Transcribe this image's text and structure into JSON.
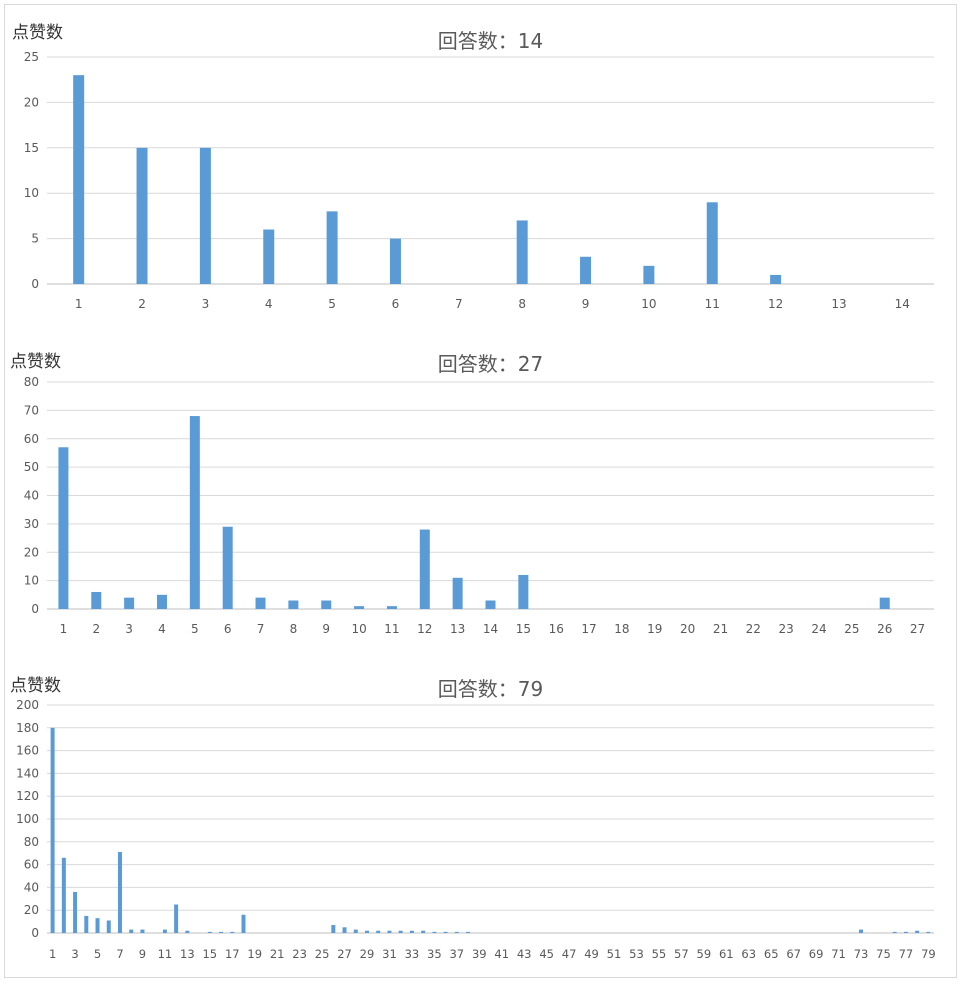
{
  "chart_data": [
    {
      "type": "bar",
      "title": "回答数：14",
      "ylabel": "点赞数",
      "xlabel": "",
      "ylim": [
        0,
        25
      ],
      "yticks": [
        0,
        5,
        10,
        15,
        20,
        25
      ],
      "categories": [
        "1",
        "2",
        "3",
        "4",
        "5",
        "6",
        "7",
        "8",
        "9",
        "10",
        "11",
        "12",
        "13",
        "14"
      ],
      "values": [
        23,
        15,
        15,
        6,
        8,
        5,
        0,
        7,
        3,
        2,
        9,
        1,
        0,
        0
      ],
      "color": "#5b9bd5",
      "grid": true
    },
    {
      "type": "bar",
      "title": "回答数：27",
      "ylabel": "点赞数",
      "xlabel": "",
      "ylim": [
        0,
        80
      ],
      "yticks": [
        0,
        10,
        20,
        30,
        40,
        50,
        60,
        70,
        80
      ],
      "categories": [
        "1",
        "2",
        "3",
        "4",
        "5",
        "6",
        "7",
        "8",
        "9",
        "10",
        "11",
        "12",
        "13",
        "14",
        "15",
        "16",
        "17",
        "18",
        "19",
        "20",
        "21",
        "22",
        "23",
        "24",
        "25",
        "26",
        "27"
      ],
      "values": [
        57,
        6,
        4,
        5,
        68,
        29,
        4,
        3,
        3,
        1,
        1,
        28,
        11,
        3,
        12,
        0,
        0,
        0,
        0,
        0,
        0,
        0,
        0,
        0,
        0,
        4,
        0
      ],
      "color": "#5b9bd5",
      "grid": true
    },
    {
      "type": "bar",
      "title": "回答数：79",
      "ylabel": "点赞数",
      "xlabel": "",
      "ylim": [
        0,
        200
      ],
      "yticks": [
        0,
        20,
        40,
        60,
        80,
        100,
        120,
        140,
        160,
        180,
        200
      ],
      "categories": [
        "1",
        "2",
        "3",
        "4",
        "5",
        "6",
        "7",
        "8",
        "9",
        "10",
        "11",
        "12",
        "13",
        "14",
        "15",
        "16",
        "17",
        "18",
        "19",
        "20",
        "21",
        "22",
        "23",
        "24",
        "25",
        "26",
        "27",
        "28",
        "29",
        "30",
        "31",
        "32",
        "33",
        "34",
        "35",
        "36",
        "37",
        "38",
        "39",
        "40",
        "41",
        "42",
        "43",
        "44",
        "45",
        "46",
        "47",
        "48",
        "49",
        "50",
        "51",
        "52",
        "53",
        "54",
        "55",
        "56",
        "57",
        "58",
        "59",
        "60",
        "61",
        "62",
        "63",
        "64",
        "65",
        "66",
        "67",
        "68",
        "69",
        "70",
        "71",
        "72",
        "73",
        "74",
        "75",
        "76",
        "77",
        "78",
        "79"
      ],
      "tick_labels_shown_every": 2,
      "values": [
        180,
        66,
        36,
        15,
        13,
        11,
        71,
        3,
        3,
        0,
        3,
        25,
        2,
        0,
        1,
        1,
        1,
        16,
        0,
        0,
        0,
        0,
        0,
        0,
        0,
        7,
        5,
        3,
        2,
        2,
        2,
        2,
        2,
        2,
        1,
        1,
        1,
        1,
        0,
        0,
        0,
        0,
        0,
        0,
        0,
        0,
        0,
        0,
        0,
        0,
        0,
        0,
        0,
        0,
        0,
        0,
        0,
        0,
        0,
        0,
        0,
        0,
        0,
        0,
        0,
        0,
        0,
        0,
        0,
        0,
        0,
        0,
        3,
        0,
        0,
        1,
        1,
        2,
        1
      ],
      "color": "#5b9bd5",
      "grid": true
    }
  ]
}
